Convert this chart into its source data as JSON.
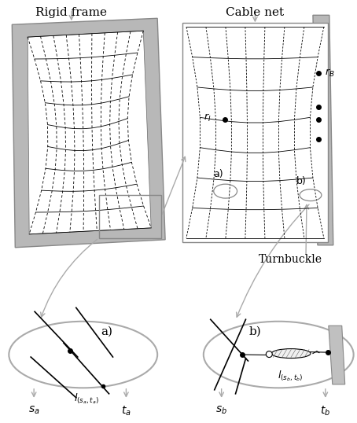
{
  "fig_width": 4.54,
  "fig_height": 5.38,
  "dpi": 100,
  "bg_color": "#ffffff",
  "gray_frame": "#b0b0b0",
  "mid_gray": "#999999",
  "black": "#000000",
  "arrow_gray": "#aaaaaa",
  "label_rigid_frame": "Rigid frame",
  "label_cable_net": "Cable net",
  "label_turnbuckle": "Turnbuckle",
  "label_rI": "$r_I$",
  "label_rB": "$r_B$",
  "label_l_sa_ta": "$l_{(s_a,t_a)}$",
  "label_l_sb_tb": "$l_{(s_b,t_b)}$",
  "label_sa": "$s_a$",
  "label_ta": "$t_a$",
  "label_sb": "$s_b$",
  "label_tb": "$t_b$"
}
